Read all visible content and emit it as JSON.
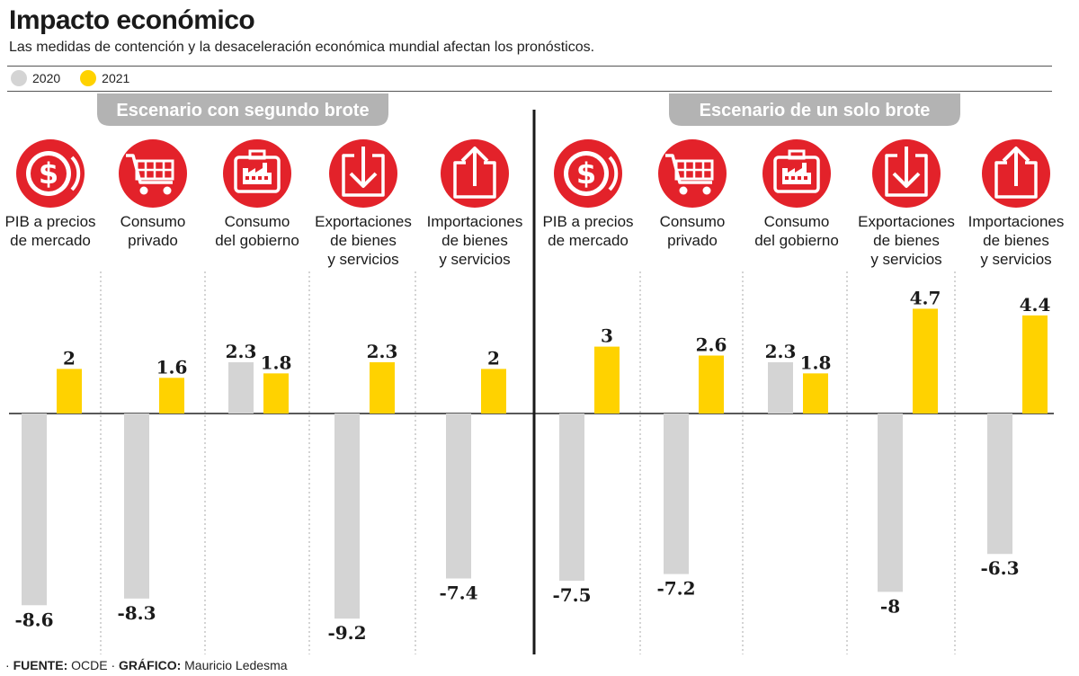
{
  "title": "Impacto económico",
  "subtitle": "Las medidas de contención y la desaceleración económica mundial afectan los pronósticos.",
  "legend": [
    {
      "label": "2020",
      "color": "#d4d4d4"
    },
    {
      "label": "2021",
      "color": "#ffd200"
    }
  ],
  "source": {
    "source_label": "FUENTE:",
    "source_value": "OCDE",
    "separator": "·",
    "graphic_label": "GRÁFICO:",
    "graphic_value": "Mauricio Ledesma"
  },
  "colors": {
    "icon_red": "#e3222a",
    "bar_2020": "#d4d4d4",
    "bar_2021": "#ffd200",
    "header_pill": "#b3b3b3",
    "divider": "#1a1a1a"
  },
  "chart_data": {
    "type": "bar",
    "series_names": [
      "2020",
      "2021"
    ],
    "panels": [
      {
        "title": "Escenario con segundo brote",
        "categories": [
          {
            "lines": [
              "PIB a precios",
              "de mercado"
            ],
            "icon": "dollar-icon",
            "values": [
              -8.6,
              2
            ]
          },
          {
            "lines": [
              "Consumo",
              "privado"
            ],
            "icon": "shopping-cart-icon",
            "values": [
              -8.3,
              1.6
            ]
          },
          {
            "lines": [
              "Consumo",
              "del gobierno"
            ],
            "icon": "factory-icon",
            "values": [
              2.3,
              1.8
            ]
          },
          {
            "lines": [
              "Exportaciones",
              "de bienes",
              "y servicios"
            ],
            "icon": "export-arrow-icon",
            "values": [
              -9.2,
              2.3
            ]
          },
          {
            "lines": [
              "Importaciones",
              "de bienes",
              "y servicios"
            ],
            "icon": "import-arrow-icon",
            "values": [
              -7.4,
              2
            ]
          }
        ]
      },
      {
        "title": "Escenario de un solo brote",
        "categories": [
          {
            "lines": [
              "PIB a precios",
              "de mercado"
            ],
            "icon": "dollar-icon",
            "values": [
              -7.5,
              3
            ]
          },
          {
            "lines": [
              "Consumo",
              "privado"
            ],
            "icon": "shopping-cart-icon",
            "values": [
              -7.2,
              2.6
            ]
          },
          {
            "lines": [
              "Consumo",
              "del gobierno"
            ],
            "icon": "factory-icon",
            "values": [
              2.3,
              1.8
            ]
          },
          {
            "lines": [
              "Exportaciones",
              "de bienes",
              "y servicios"
            ],
            "icon": "export-arrow-icon",
            "values": [
              -8,
              4.7
            ]
          },
          {
            "lines": [
              "Importaciones",
              "de bienes",
              "y servicios"
            ],
            "icon": "import-arrow-icon",
            "values": [
              -6.3,
              4.4
            ]
          }
        ]
      }
    ],
    "ylim": [
      -10,
      5
    ],
    "grid": false
  }
}
